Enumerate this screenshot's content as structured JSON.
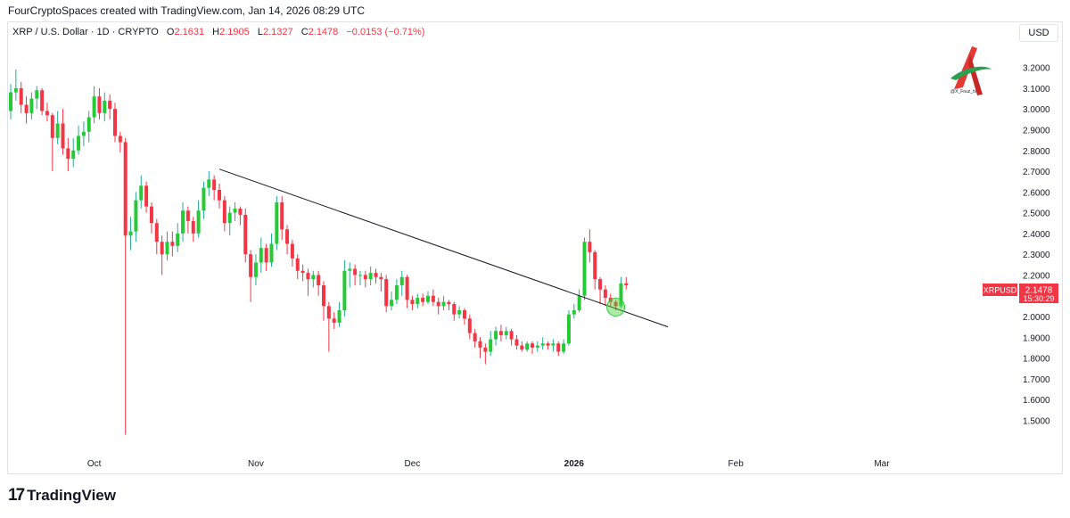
{
  "header": {
    "text": "FourCryptoSpaces created with TradingView.com, Jan 14, 2026 08:29 UTC"
  },
  "legend": {
    "symbol": "XRP / U.S. Dollar · 1D · CRYPTO",
    "o_label": "O",
    "o_value": "2.1631",
    "h_label": "H",
    "h_value": "2.1905",
    "l_label": "L",
    "l_value": "2.1327",
    "c_label": "C",
    "c_value": "2.1478",
    "change": "−0.0153 (−0.71%)"
  },
  "currency": "USD",
  "watermark": {
    "text": "@X_Fouz_tv"
  },
  "price_tag": {
    "symbol": "XRPUSD",
    "price": "2.1478",
    "countdown": "15:30:29"
  },
  "footer": {
    "brand": "TradingView",
    "mark": "17"
  },
  "colors": {
    "up": "#22ab94",
    "down": "#f23645",
    "up_fill": "#26c936",
    "grid": "#e0e3eb",
    "trendline": "#131722",
    "highlight": "#4cd137"
  },
  "chart_data": {
    "type": "candlestick",
    "title": "XRP / U.S. Dollar · 1D · CRYPTO",
    "ylim": [
      1.38,
      3.27
    ],
    "y_ticks": [
      "3.2000",
      "3.1000",
      "3.0000",
      "2.9000",
      "2.8000",
      "2.7000",
      "2.6000",
      "2.5000",
      "2.4000",
      "2.3000",
      "2.2000",
      "2.1000",
      "2.0000",
      "1.9000",
      "1.8000",
      "1.7000",
      "1.6000",
      "1.5000"
    ],
    "x_ticks": [
      {
        "label": "Oct",
        "index": 16,
        "bold": false
      },
      {
        "label": "Nov",
        "index": 47,
        "bold": false
      },
      {
        "label": "Dec",
        "index": 77,
        "bold": false
      },
      {
        "label": "2026",
        "index": 108,
        "bold": true
      },
      {
        "label": "Feb",
        "index": 139,
        "bold": false
      },
      {
        "label": "Mar",
        "index": 167,
        "bold": false
      }
    ],
    "index_range": [
      -1,
      175
    ],
    "candles": [
      [
        2.99,
        3.08,
        3.12,
        2.95
      ],
      [
        3.08,
        3.1,
        3.19,
        3.04
      ],
      [
        3.1,
        3.02,
        3.13,
        2.98
      ],
      [
        3.02,
        2.98,
        3.06,
        2.93
      ],
      [
        2.98,
        3.05,
        3.08,
        2.95
      ],
      [
        3.05,
        3.09,
        3.11,
        3.0
      ],
      [
        3.09,
        2.99,
        3.1,
        2.97
      ],
      [
        2.99,
        2.97,
        3.03,
        2.94
      ],
      [
        2.97,
        2.86,
        2.98,
        2.7
      ],
      [
        2.86,
        2.93,
        2.99,
        2.83
      ],
      [
        2.93,
        2.81,
        3.0,
        2.78
      ],
      [
        2.81,
        2.76,
        2.86,
        2.7
      ],
      [
        2.76,
        2.8,
        2.86,
        2.72
      ],
      [
        2.8,
        2.87,
        2.92,
        2.78
      ],
      [
        2.87,
        2.89,
        2.94,
        2.82
      ],
      [
        2.89,
        2.96,
        2.99,
        2.84
      ],
      [
        2.96,
        3.06,
        3.11,
        2.93
      ],
      [
        3.06,
        2.98,
        3.1,
        2.95
      ],
      [
        2.98,
        3.04,
        3.08,
        2.94
      ],
      [
        3.04,
        3.0,
        3.07,
        2.95
      ],
      [
        3.0,
        2.87,
        3.03,
        2.84
      ],
      [
        2.87,
        2.84,
        2.89,
        2.79
      ],
      [
        2.84,
        2.39,
        2.86,
        1.43
      ],
      [
        2.39,
        2.41,
        2.48,
        2.32
      ],
      [
        2.41,
        2.56,
        2.6,
        2.36
      ],
      [
        2.56,
        2.63,
        2.68,
        2.52
      ],
      [
        2.63,
        2.53,
        2.65,
        2.5
      ],
      [
        2.53,
        2.45,
        2.55,
        2.4
      ],
      [
        2.45,
        2.36,
        2.47,
        2.3
      ],
      [
        2.36,
        2.3,
        2.39,
        2.2
      ],
      [
        2.3,
        2.36,
        2.41,
        2.27
      ],
      [
        2.36,
        2.34,
        2.41,
        2.29
      ],
      [
        2.34,
        2.4,
        2.45,
        2.31
      ],
      [
        2.4,
        2.51,
        2.55,
        2.36
      ],
      [
        2.51,
        2.46,
        2.53,
        2.4
      ],
      [
        2.46,
        2.4,
        2.48,
        2.36
      ],
      [
        2.4,
        2.51,
        2.56,
        2.38
      ],
      [
        2.51,
        2.62,
        2.65,
        2.47
      ],
      [
        2.62,
        2.66,
        2.7,
        2.58
      ],
      [
        2.66,
        2.61,
        2.68,
        2.56
      ],
      [
        2.61,
        2.56,
        2.64,
        2.52
      ],
      [
        2.56,
        2.45,
        2.58,
        2.41
      ],
      [
        2.45,
        2.5,
        2.53,
        2.39
      ],
      [
        2.5,
        2.52,
        2.55,
        2.46
      ],
      [
        2.52,
        2.49,
        2.53,
        2.44
      ],
      [
        2.49,
        2.3,
        2.52,
        2.26
      ],
      [
        2.3,
        2.19,
        2.32,
        2.07
      ],
      [
        2.19,
        2.26,
        2.3,
        2.15
      ],
      [
        2.26,
        2.33,
        2.38,
        2.21
      ],
      [
        2.33,
        2.26,
        2.35,
        2.22
      ],
      [
        2.26,
        2.35,
        2.4,
        2.24
      ],
      [
        2.35,
        2.55,
        2.58,
        2.32
      ],
      [
        2.55,
        2.42,
        2.58,
        2.37
      ],
      [
        2.42,
        2.35,
        2.44,
        2.3
      ],
      [
        2.35,
        2.28,
        2.37,
        2.24
      ],
      [
        2.28,
        2.22,
        2.3,
        2.18
      ],
      [
        2.22,
        2.21,
        2.25,
        2.17
      ],
      [
        2.21,
        2.18,
        2.23,
        2.1
      ],
      [
        2.18,
        2.2,
        2.22,
        2.14
      ],
      [
        2.2,
        2.15,
        2.22,
        2.1
      ],
      [
        2.15,
        2.05,
        2.17,
        1.98
      ],
      [
        2.05,
        1.99,
        2.07,
        1.83
      ],
      [
        1.99,
        1.97,
        2.02,
        1.94
      ],
      [
        1.97,
        2.03,
        2.07,
        1.95
      ],
      [
        2.03,
        2.22,
        2.27,
        2.0
      ],
      [
        2.22,
        2.23,
        2.26,
        2.14
      ],
      [
        2.23,
        2.2,
        2.25,
        2.15
      ],
      [
        2.2,
        2.2,
        2.22,
        2.15
      ],
      [
        2.2,
        2.18,
        2.22,
        2.14
      ],
      [
        2.18,
        2.21,
        2.24,
        2.15
      ],
      [
        2.21,
        2.19,
        2.23,
        2.16
      ],
      [
        2.19,
        2.18,
        2.21,
        2.12
      ],
      [
        2.18,
        2.05,
        2.2,
        2.02
      ],
      [
        2.05,
        2.08,
        2.12,
        2.03
      ],
      [
        2.08,
        2.15,
        2.18,
        2.06
      ],
      [
        2.15,
        2.19,
        2.22,
        2.1
      ],
      [
        2.19,
        2.08,
        2.2,
        2.04
      ],
      [
        2.08,
        2.06,
        2.1,
        2.03
      ],
      [
        2.06,
        2.09,
        2.11,
        2.04
      ],
      [
        2.09,
        2.07,
        2.11,
        2.05
      ],
      [
        2.07,
        2.1,
        2.12,
        2.06
      ],
      [
        2.1,
        2.07,
        2.13,
        2.05
      ],
      [
        2.07,
        2.05,
        2.09,
        2.01
      ],
      [
        2.05,
        2.07,
        2.1,
        2.03
      ],
      [
        2.07,
        2.06,
        2.08,
        2.03
      ],
      [
        2.06,
        2.01,
        2.07,
        1.98
      ],
      [
        2.01,
        2.03,
        2.05,
        1.99
      ],
      [
        2.03,
        1.99,
        2.04,
        1.96
      ],
      [
        1.99,
        1.92,
        2.01,
        1.89
      ],
      [
        1.92,
        1.88,
        1.94,
        1.85
      ],
      [
        1.88,
        1.85,
        1.9,
        1.8
      ],
      [
        1.85,
        1.83,
        1.87,
        1.77
      ],
      [
        1.83,
        1.89,
        1.93,
        1.81
      ],
      [
        1.89,
        1.93,
        1.95,
        1.86
      ],
      [
        1.93,
        1.91,
        1.96,
        1.88
      ],
      [
        1.91,
        1.93,
        1.95,
        1.89
      ],
      [
        1.93,
        1.89,
        1.94,
        1.86
      ],
      [
        1.89,
        1.86,
        1.91,
        1.84
      ],
      [
        1.86,
        1.84,
        1.88,
        1.83
      ],
      [
        1.84,
        1.87,
        1.88,
        1.83
      ],
      [
        1.87,
        1.85,
        1.88,
        1.82
      ],
      [
        1.85,
        1.86,
        1.88,
        1.83
      ],
      [
        1.86,
        1.87,
        1.9,
        1.84
      ],
      [
        1.87,
        1.86,
        1.88,
        1.84
      ],
      [
        1.86,
        1.87,
        1.89,
        1.83
      ],
      [
        1.87,
        1.83,
        1.88,
        1.81
      ],
      [
        1.83,
        1.87,
        1.89,
        1.82
      ],
      [
        1.87,
        2.01,
        2.03,
        1.86
      ],
      [
        2.01,
        2.03,
        2.06,
        1.99
      ],
      [
        2.03,
        2.1,
        2.13,
        2.02
      ],
      [
        2.1,
        2.36,
        2.38,
        2.08
      ],
      [
        2.36,
        2.31,
        2.42,
        2.26
      ],
      [
        2.31,
        2.18,
        2.32,
        2.13
      ],
      [
        2.18,
        2.13,
        2.19,
        2.06
      ],
      [
        2.13,
        2.09,
        2.15,
        2.05
      ],
      [
        2.09,
        2.07,
        2.11,
        2.05
      ],
      [
        2.07,
        2.05,
        2.08,
        2.03
      ],
      [
        2.05,
        2.16,
        2.19,
        2.04
      ],
      [
        2.16,
        2.15,
        2.19,
        2.13
      ]
    ],
    "trendline": {
      "start": {
        "index": 40,
        "value": 2.71
      },
      "end": {
        "index": 126,
        "value": 1.95
      }
    },
    "highlight": {
      "index": 116,
      "value": 2.045
    },
    "last_price": 2.1478
  }
}
